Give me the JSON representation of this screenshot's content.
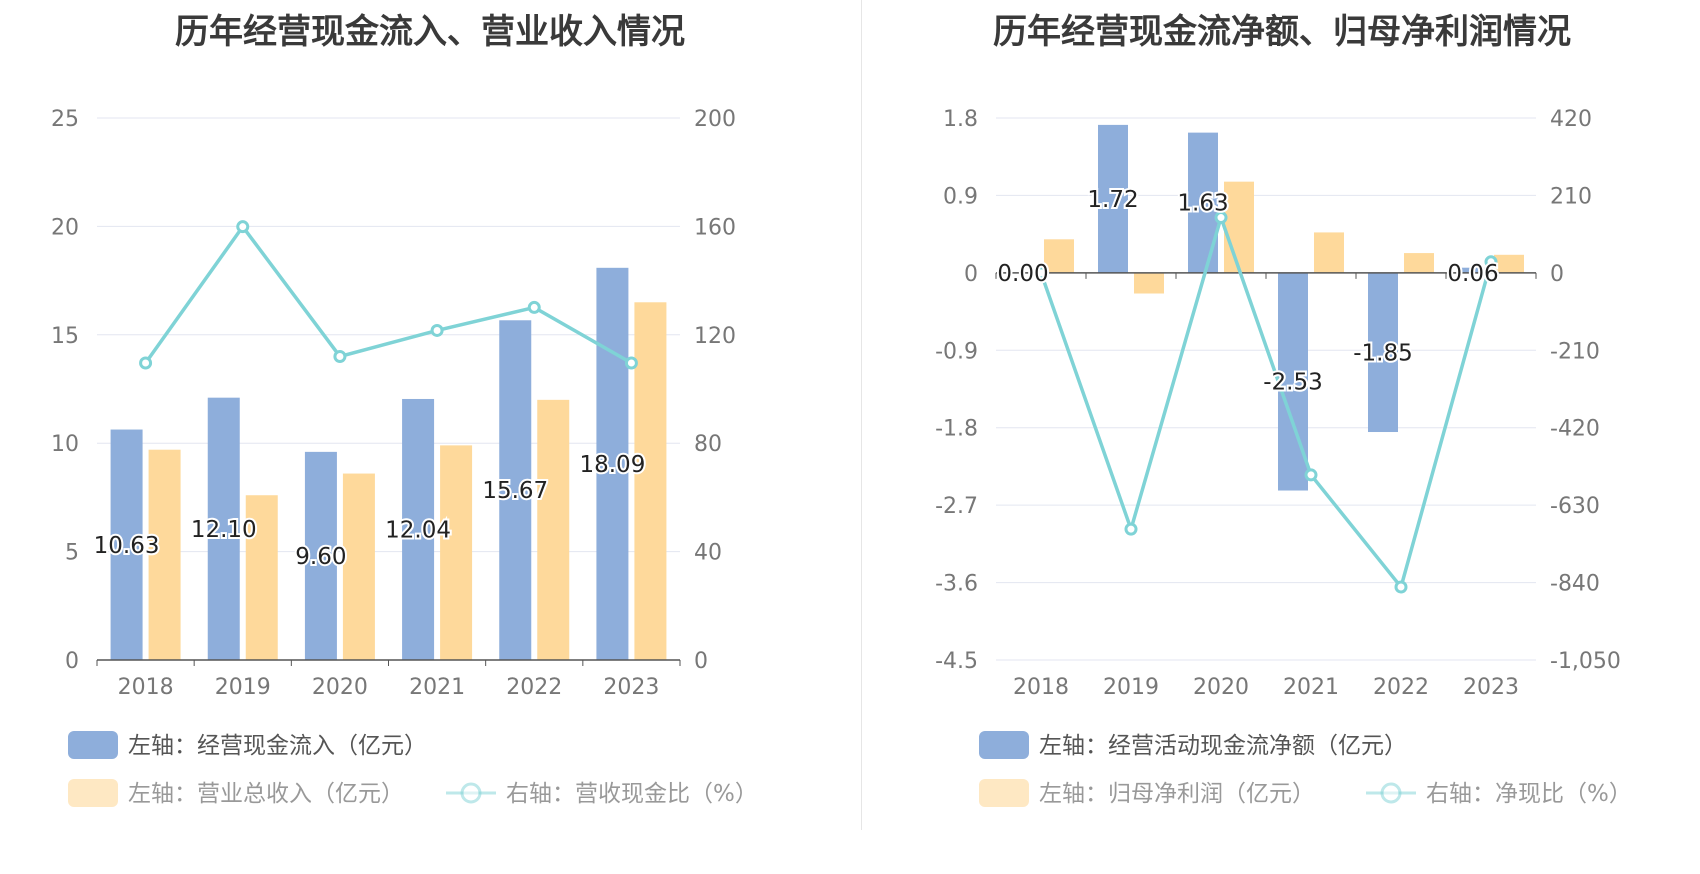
{
  "colors": {
    "bar_blue": "#8eaedb",
    "bar_yellow": "#fed99b",
    "line_teal": "#7fd3d6",
    "grid": "#e3e6f0",
    "axis": "#555555"
  },
  "left": {
    "title": "历年经营现金流入、营业收入情况",
    "legend": {
      "series1": "左轴：经营现金流入（亿元）",
      "series2": "左轴：营业总收入（亿元）",
      "series3": "右轴：营收现金比（%）"
    }
  },
  "right": {
    "title": "历年经营现金流净额、归母净利润情况",
    "legend": {
      "series1": "左轴：经营活动现金流净额（亿元）",
      "series2": "左轴：归母净利润（亿元）",
      "series3": "右轴：净现比（%）"
    }
  },
  "chart_data": [
    {
      "type": "bar",
      "title": "历年经营现金流入、营业收入情况",
      "categories": [
        "2018",
        "2019",
        "2020",
        "2021",
        "2022",
        "2023"
      ],
      "y_left": {
        "ticks": [
          "0",
          "5",
          "10",
          "15",
          "20",
          "25"
        ],
        "range": [
          0,
          25
        ]
      },
      "y_right": {
        "ticks": [
          "0",
          "40",
          "80",
          "120",
          "160",
          "200"
        ],
        "range": [
          0,
          200
        ]
      },
      "series": [
        {
          "name": "左轴：经营现金流入（亿元）",
          "axis": "left",
          "kind": "bar",
          "values": [
            10.63,
            12.1,
            9.6,
            12.04,
            15.67,
            18.09
          ],
          "labels": [
            "10.63",
            "12.10",
            "9.60",
            "12.04",
            "15.67",
            "18.09"
          ]
        },
        {
          "name": "左轴：营业总收入（亿元）",
          "axis": "left",
          "kind": "bar",
          "values": [
            9.7,
            7.6,
            8.6,
            9.9,
            12.0,
            16.5
          ]
        },
        {
          "name": "右轴：营收现金比（%）",
          "axis": "right",
          "kind": "line",
          "values": [
            109.6,
            159.9,
            112.0,
            121.6,
            130.1,
            109.6
          ]
        }
      ],
      "grid": true,
      "legend_position": "bottom-left"
    },
    {
      "type": "bar",
      "title": "历年经营现金流净额、归母净利润情况",
      "categories": [
        "2018",
        "2019",
        "2020",
        "2021",
        "2022",
        "2023"
      ],
      "y_left": {
        "ticks": [
          "-4.5",
          "-3.6",
          "-2.7",
          "-1.8",
          "-0.9",
          "0",
          "0.9",
          "1.8"
        ],
        "range": [
          -4.5,
          1.8
        ]
      },
      "y_right": {
        "ticks": [
          "-1,050",
          "-840",
          "-630",
          "-420",
          "-210",
          "0",
          "210",
          "420"
        ],
        "range": [
          -1050,
          420
        ]
      },
      "series": [
        {
          "name": "左轴：经营活动现金流净额（亿元）",
          "axis": "left",
          "kind": "bar",
          "values": [
            0.0,
            1.72,
            1.63,
            -2.53,
            -1.85,
            0.06
          ],
          "labels": [
            "0.00",
            "1.72",
            "1.63",
            "-2.53",
            "-1.85",
            "0.06"
          ]
        },
        {
          "name": "左轴：归母净利润（亿元）",
          "axis": "left",
          "kind": "bar",
          "values": [
            0.39,
            -0.24,
            1.06,
            0.47,
            0.23,
            0.21
          ]
        },
        {
          "name": "右轴：净现比（%）",
          "axis": "right",
          "kind": "line",
          "values": [
            0,
            -695,
            150,
            -548,
            -852,
            30
          ]
        }
      ],
      "grid": true,
      "legend_position": "bottom-left"
    }
  ]
}
